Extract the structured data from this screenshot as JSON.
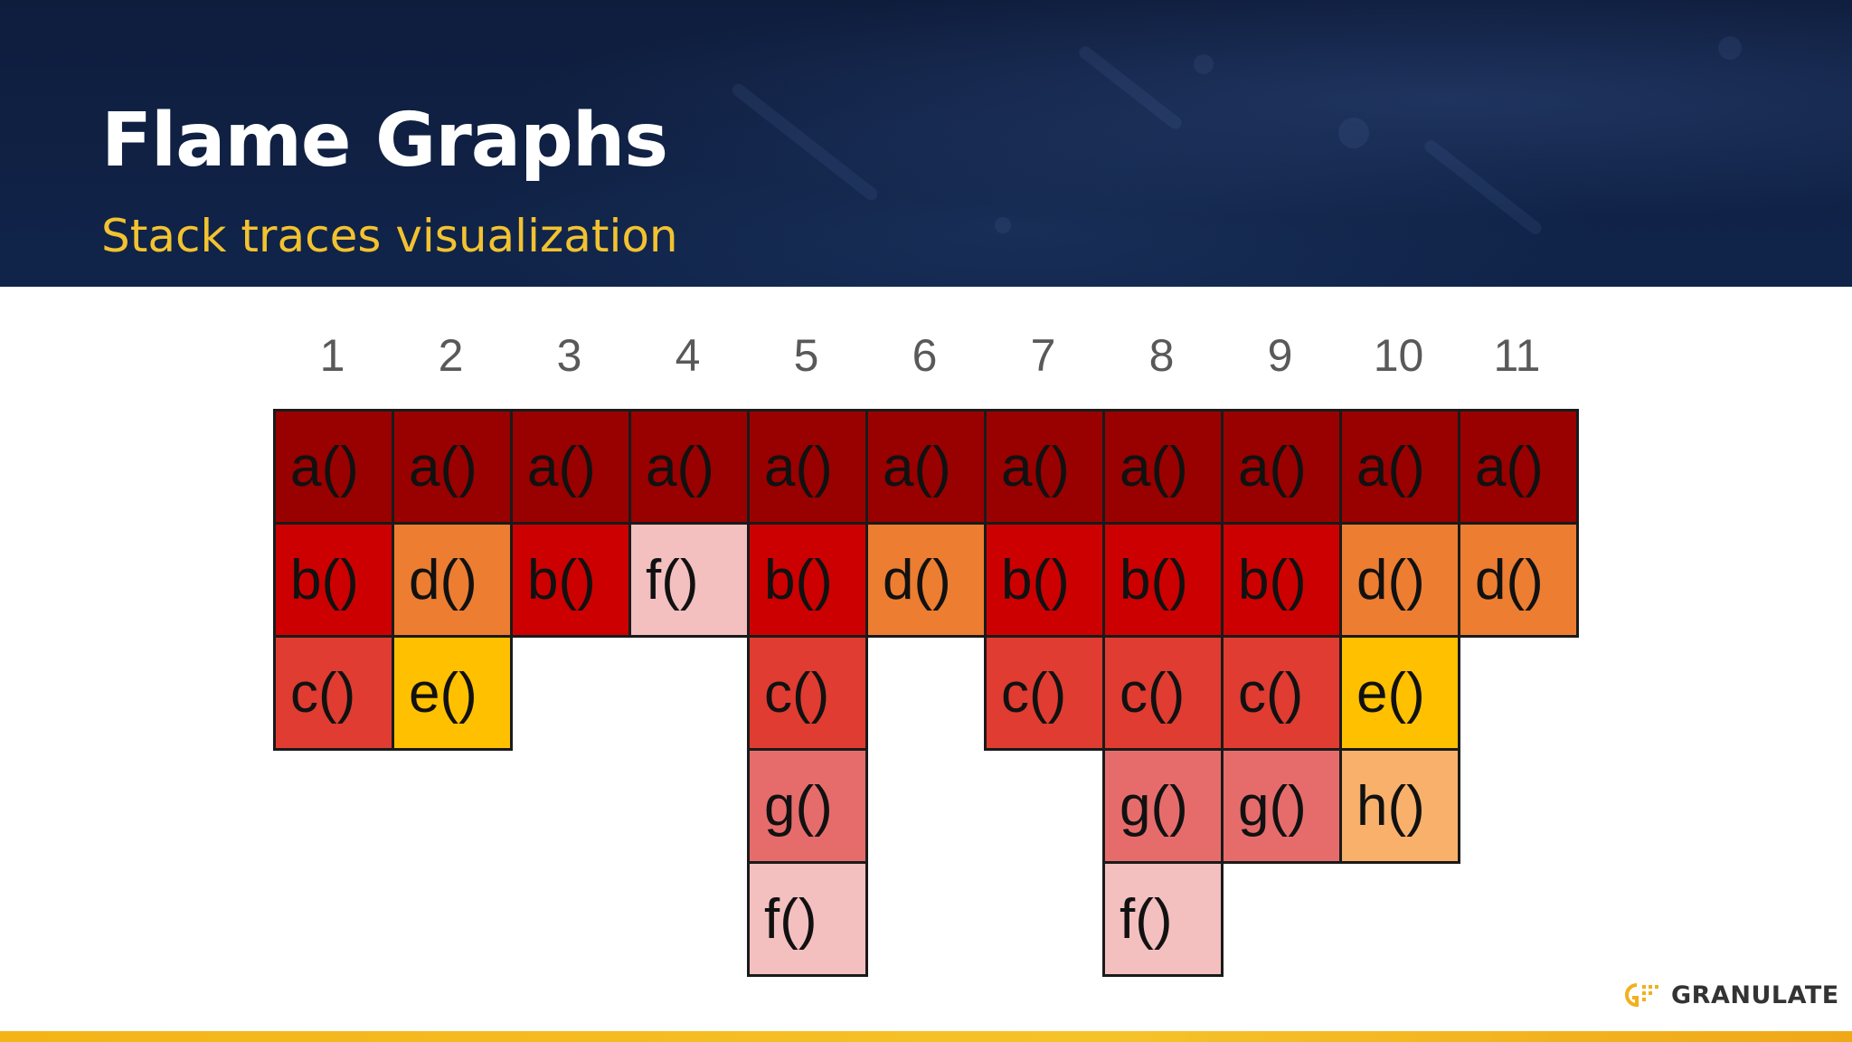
{
  "slide": {
    "title": "Flame Graphs",
    "subtitle": "Stack traces visualization",
    "logo_text": "GRANULATE"
  },
  "colors": {
    "header_bg": "#0f1d3d",
    "subtitle": "#f2c230",
    "bottom_bar": "#f4b418",
    "a": "#990000",
    "b": "#cc0000",
    "c": "#e03c31",
    "d": "#ed7d31",
    "e": "#ffc000",
    "f": "#f4bfbf",
    "g": "#e66c6c",
    "h": "#f8b06b"
  },
  "columns": [
    "1",
    "2",
    "3",
    "4",
    "5",
    "6",
    "7",
    "8",
    "9",
    "10",
    "11"
  ],
  "stacks": [
    [
      "a()",
      "b()",
      "c()"
    ],
    [
      "a()",
      "d()",
      "e()"
    ],
    [
      "a()",
      "b()"
    ],
    [
      "a()",
      "f()"
    ],
    [
      "a()",
      "b()",
      "c()",
      "g()",
      "f()"
    ],
    [
      "a()",
      "d()"
    ],
    [
      "a()",
      "b()",
      "c()"
    ],
    [
      "a()",
      "b()",
      "c()",
      "g()",
      "f()"
    ],
    [
      "a()",
      "b()",
      "c()",
      "g()"
    ],
    [
      "a()",
      "d()",
      "e()",
      "h()"
    ],
    [
      "a()",
      "d()"
    ]
  ]
}
